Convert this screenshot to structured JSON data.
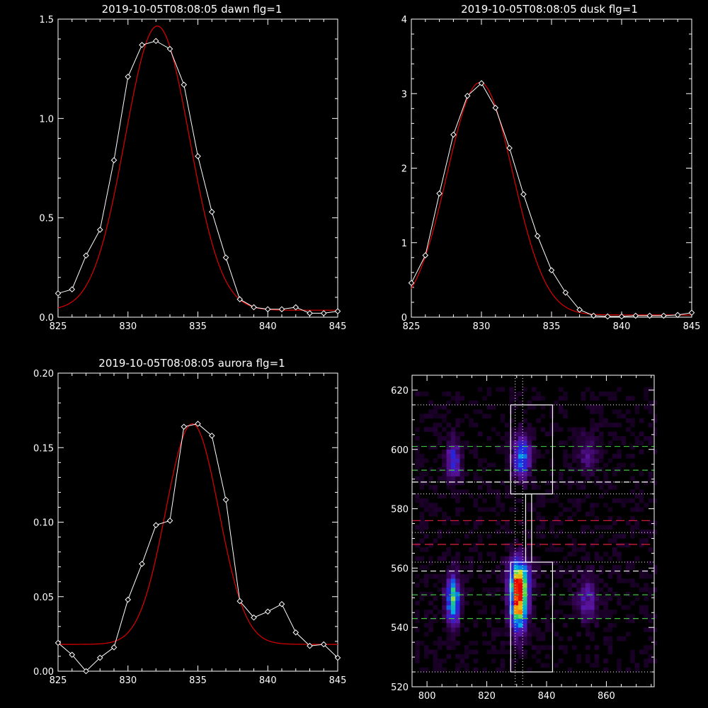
{
  "colors": {
    "background": "#000000",
    "axes": "#ffffff",
    "observed": "#ffffff",
    "fit": "#e00000",
    "dotted_guides": "#ffffff",
    "bright_row_lines": "#e02040",
    "green_row_lines": "#40c040",
    "white_dash_lines": "#ffffff"
  },
  "chart_data": [
    {
      "type": "line",
      "title": "2019-10-05T08:08:05 dawn flg=1",
      "xlim": [
        825,
        845
      ],
      "ylim": [
        0,
        1.5
      ],
      "xticks": [
        "825",
        "830",
        "835",
        "840",
        "845"
      ],
      "yticks": [
        "0.0",
        "0.5",
        "1.0",
        "1.5"
      ],
      "ytick_values": [
        0,
        0.5,
        1.0,
        1.5
      ],
      "observed": {
        "x": [
          825,
          826,
          827,
          828,
          829,
          830,
          831,
          832,
          833,
          834,
          835,
          836,
          837,
          838,
          839,
          840,
          841,
          842,
          843,
          844,
          845
        ],
        "y": [
          0.12,
          0.14,
          0.31,
          0.44,
          0.79,
          1.21,
          1.37,
          1.39,
          1.35,
          1.17,
          0.81,
          0.53,
          0.3,
          0.09,
          0.05,
          0.04,
          0.04,
          0.05,
          0.02,
          0.02,
          0.03
        ]
      },
      "fit": {
        "center": 832.1,
        "amplitude": 1.43,
        "sigma": 2.3,
        "baseline": 0.035
      }
    },
    {
      "type": "line",
      "title": "2019-10-05T08:08:05 dusk flg=1",
      "xlim": [
        825,
        845
      ],
      "ylim": [
        0,
        4
      ],
      "xticks": [
        "825",
        "830",
        "835",
        "840",
        "845"
      ],
      "yticks": [
        "0",
        "1",
        "2",
        "3",
        "4"
      ],
      "ytick_values": [
        0,
        1,
        2,
        3,
        4
      ],
      "observed": {
        "x": [
          825,
          826,
          827,
          828,
          829,
          830,
          831,
          832,
          833,
          834,
          835,
          836,
          837,
          838,
          839,
          840,
          841,
          842,
          843,
          844,
          845
        ],
        "y": [
          0.46,
          0.83,
          1.66,
          2.45,
          2.97,
          3.14,
          2.81,
          2.27,
          1.65,
          1.09,
          0.63,
          0.33,
          0.1,
          0.02,
          0.01,
          0.01,
          0.02,
          0.02,
          0.02,
          0.03,
          0.06
        ]
      },
      "fit": {
        "center": 829.9,
        "amplitude": 3.12,
        "sigma": 2.35,
        "baseline": 0.03
      }
    },
    {
      "type": "line",
      "title": "2019-10-05T08:08:05 aurora flg=1",
      "xlim": [
        825,
        845
      ],
      "ylim": [
        0,
        0.2
      ],
      "xticks": [
        "825",
        "830",
        "835",
        "840",
        "845"
      ],
      "yticks": [
        "0.00",
        "0.05",
        "0.10",
        "0.15",
        "0.20"
      ],
      "ytick_values": [
        0,
        0.05,
        0.1,
        0.15,
        0.2
      ],
      "observed": {
        "x": [
          825,
          826,
          827,
          828,
          829,
          830,
          831,
          832,
          833,
          834,
          835,
          836,
          837,
          838,
          839,
          840,
          841,
          842,
          843,
          844,
          845
        ],
        "y": [
          0.019,
          0.011,
          0.0,
          0.009,
          0.016,
          0.048,
          0.072,
          0.098,
          0.101,
          0.164,
          0.166,
          0.158,
          0.115,
          0.047,
          0.036,
          0.04,
          0.045,
          0.026,
          0.017,
          0.018,
          0.009
        ]
      },
      "fit": {
        "center": 834.6,
        "amplitude": 0.148,
        "sigma": 1.9,
        "baseline": 0.018
      }
    },
    {
      "type": "heatmap",
      "title": "",
      "xlim": [
        795,
        876
      ],
      "ylim": [
        520,
        625
      ],
      "xticks": [
        "800",
        "820",
        "840",
        "860"
      ],
      "xtick_values": [
        800,
        820,
        840,
        860
      ],
      "yticks": [
        "520",
        "540",
        "560",
        "580",
        "600",
        "620"
      ],
      "ytick_values": [
        520,
        540,
        560,
        580,
        600,
        620
      ],
      "blobs": [
        {
          "x": 808,
          "y": 549,
          "sx": 1.6,
          "sy": 5.5,
          "amp": 0.6
        },
        {
          "x": 830,
          "y": 549,
          "sx": 2.0,
          "sy": 7.0,
          "amp": 1.0
        },
        {
          "x": 853,
          "y": 549,
          "sx": 2.5,
          "sy": 5.5,
          "amp": 0.22
        },
        {
          "x": 830,
          "y": 557,
          "sx": 3.0,
          "sy": 4.5,
          "amp": 0.25
        },
        {
          "x": 808,
          "y": 596,
          "sx": 1.7,
          "sy": 4.5,
          "amp": 0.32
        },
        {
          "x": 831,
          "y": 597,
          "sx": 2.0,
          "sy": 5.0,
          "amp": 0.48
        },
        {
          "x": 853,
          "y": 598,
          "sx": 2.5,
          "sy": 5.0,
          "amp": 0.15
        }
      ],
      "boxes": [
        {
          "x0": 828,
          "x1": 842,
          "y0": 585,
          "y1": 615
        },
        {
          "x0": 833,
          "x1": 835,
          "y0": 562,
          "y1": 585
        },
        {
          "x0": 828,
          "x1": 842,
          "y0": 525,
          "y1": 562
        }
      ],
      "vertical_dotted_lines": [
        829.5,
        832
      ],
      "dotted_rows": [
        615,
        589,
        585,
        562,
        525,
        572
      ],
      "green_dashed_rows": [
        601,
        593,
        551,
        543
      ],
      "white_dashed_rows": [
        589,
        559
      ],
      "red_dashed_rows": [
        576,
        568
      ]
    }
  ]
}
